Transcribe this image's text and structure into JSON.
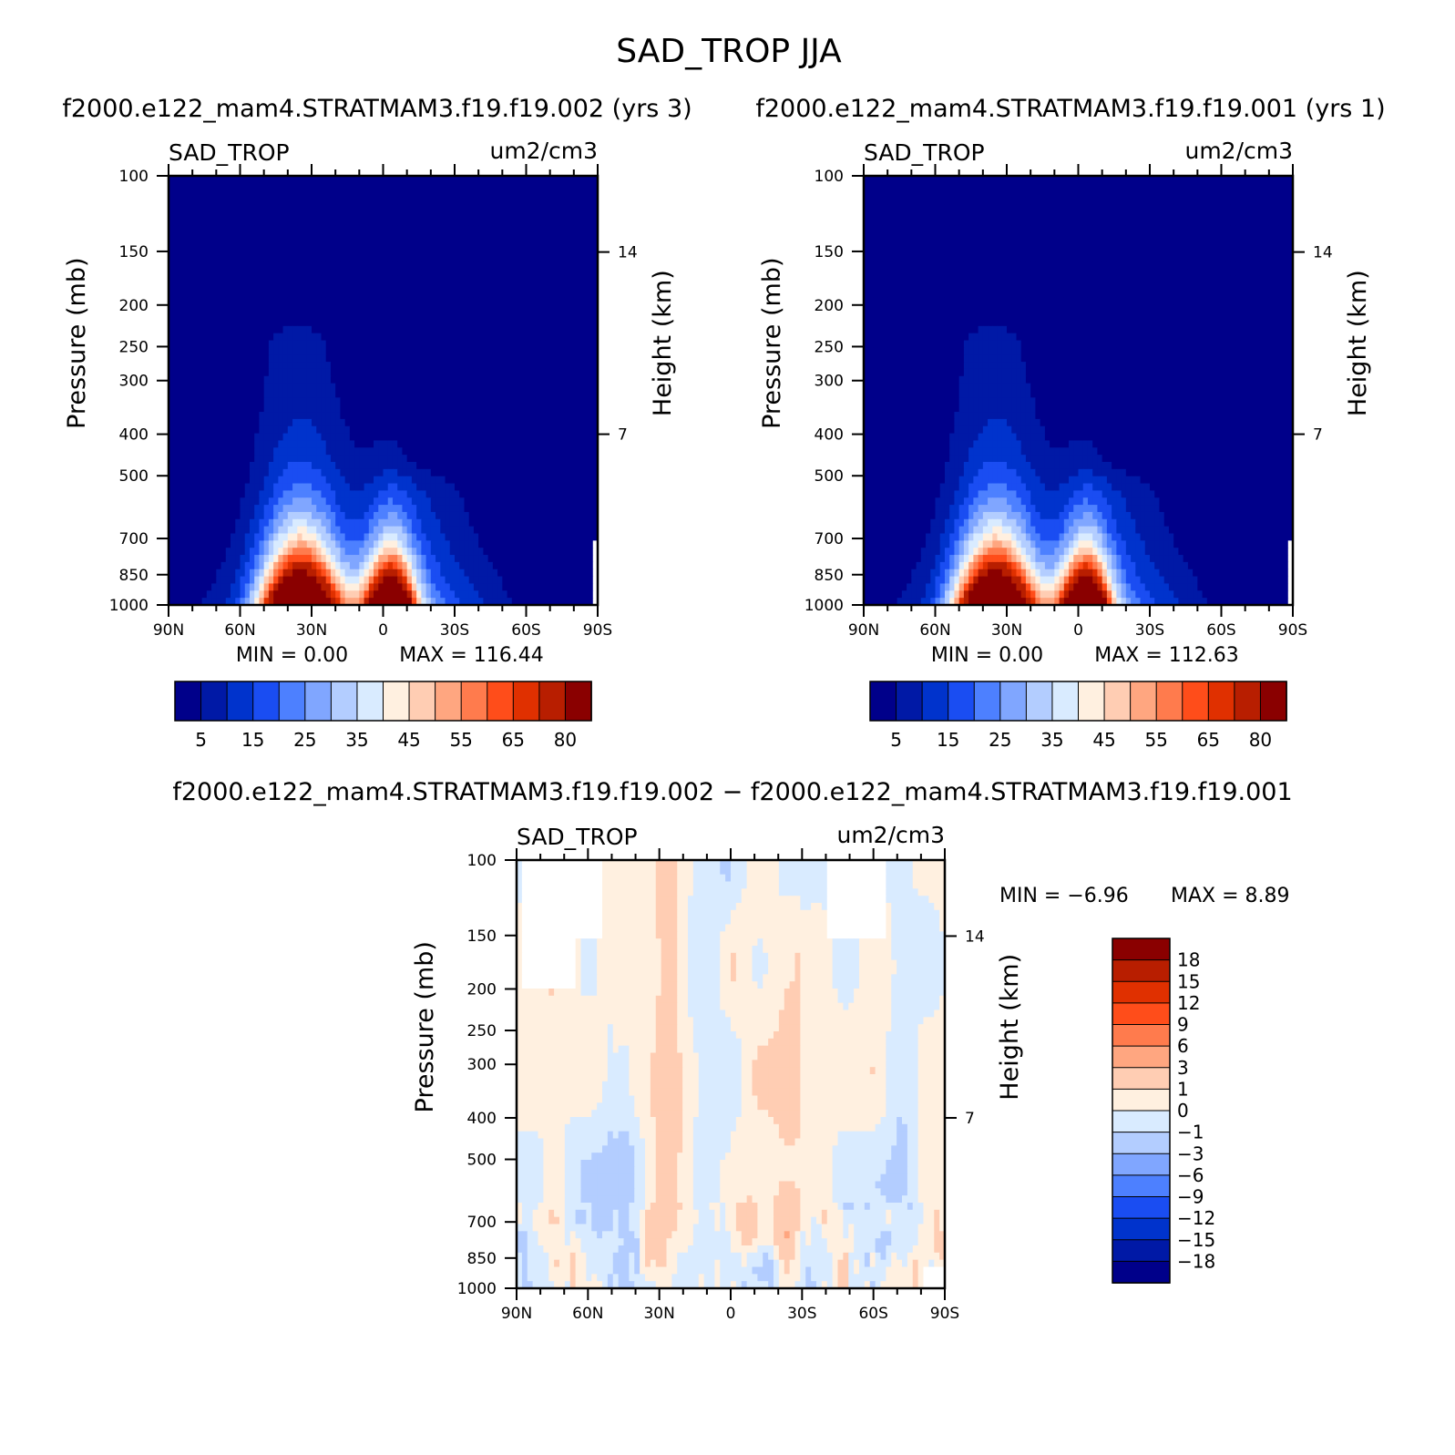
{
  "figure": {
    "title": "SAD_TROP JJA",
    "left_subtitle": "f2000.e122_mam4.STRATMAM3.f19.f19.002 (yrs 3)",
    "right_subtitle": "f2000.e122_mam4.STRATMAM3.f19.f19.001 (yrs 1)",
    "diff_subtitle": "f2000.e122_mam4.STRATMAM3.f19.f19.002 − f2000.e122_mam4.STRATMAM3.f19.f19.001"
  },
  "colors": {
    "seq_levels": [
      "#00008a",
      "#0019a6",
      "#0033cc",
      "#1a4df2",
      "#4d80ff",
      "#80a6ff",
      "#b3cdff",
      "#d9ebff",
      "#fff0e0",
      "#ffcdb3",
      "#ffa680",
      "#ff7b4d",
      "#ff4d1a",
      "#e03000",
      "#b81e00",
      "#8a0000"
    ],
    "diff_levels": [
      "#00008a",
      "#0019a6",
      "#0033cc",
      "#1a4df2",
      "#4d80ff",
      "#80a6ff",
      "#b3cdff",
      "#d9ebff",
      "#fff0e0",
      "#ffcdb3",
      "#ffa680",
      "#ff7b4d",
      "#ff4d1a",
      "#e03000",
      "#b81e00",
      "#8a0000"
    ]
  },
  "chart_data": [
    {
      "type": "heatmap",
      "panel": "left",
      "var_label": "SAD_TROP",
      "units": "um2/cm3",
      "ylabel": "Pressure (mb)",
      "y2label": "Height (km)",
      "x_ticks": [
        "90N",
        "60N",
        "30N",
        "0",
        "30S",
        "60S",
        "90S"
      ],
      "y_ticks": [
        100,
        150,
        200,
        250,
        300,
        400,
        500,
        700,
        850,
        1000
      ],
      "y2_ticks": [
        14,
        7
      ],
      "y_scale": "log",
      "ylim": [
        1000,
        100
      ],
      "min_text": "MIN =    0.00",
      "max_text": "MAX = 116.44",
      "min": 0.0,
      "max": 116.44,
      "colorbar_labels": [
        "5",
        "15",
        "25",
        "35",
        "45",
        "55",
        "65",
        "80"
      ],
      "colorbar_levels": [
        5,
        10,
        15,
        20,
        25,
        30,
        35,
        40,
        45,
        50,
        55,
        60,
        65,
        70,
        80
      ]
    },
    {
      "type": "heatmap",
      "panel": "right",
      "var_label": "SAD_TROP",
      "units": "um2/cm3",
      "ylabel": "Pressure (mb)",
      "y2label": "Height (km)",
      "x_ticks": [
        "90N",
        "60N",
        "30N",
        "0",
        "30S",
        "60S",
        "90S"
      ],
      "y_ticks": [
        100,
        150,
        200,
        250,
        300,
        400,
        500,
        700,
        850,
        1000
      ],
      "y2_ticks": [
        14,
        7
      ],
      "y_scale": "log",
      "ylim": [
        1000,
        100
      ],
      "min_text": "MIN =    0.00",
      "max_text": "MAX = 112.63",
      "min": 0.0,
      "max": 112.63,
      "colorbar_labels": [
        "5",
        "15",
        "25",
        "35",
        "45",
        "55",
        "65",
        "80"
      ],
      "colorbar_levels": [
        5,
        10,
        15,
        20,
        25,
        30,
        35,
        40,
        45,
        50,
        55,
        60,
        65,
        70,
        80
      ]
    },
    {
      "type": "heatmap",
      "panel": "difference",
      "var_label": "SAD_TROP",
      "units": "um2/cm3",
      "ylabel": "Pressure (mb)",
      "y2label": "Height (km)",
      "x_ticks": [
        "90N",
        "60N",
        "30N",
        "0",
        "30S",
        "60S",
        "90S"
      ],
      "y_ticks": [
        100,
        150,
        200,
        250,
        300,
        400,
        500,
        700,
        850,
        1000
      ],
      "y2_ticks": [
        14,
        7
      ],
      "y_scale": "log",
      "ylim": [
        1000,
        100
      ],
      "min_text": "MIN =   −6.96",
      "max_text": "MAX =     8.89",
      "min": -6.96,
      "max": 8.89,
      "colorbar_labels": [
        "18",
        "15",
        "12",
        "9",
        "6",
        "3",
        "1",
        "0",
        "−1",
        "−3",
        "−6",
        "−9",
        "−12",
        "−15",
        "−18"
      ]
    }
  ]
}
